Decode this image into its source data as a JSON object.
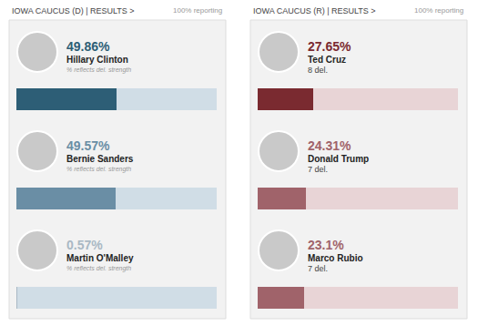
{
  "chart_data": [
    {
      "type": "bar",
      "orientation": "horizontal",
      "title": "IOWA CAUCUS (D) | RESULTS >",
      "subtitle": "100% reporting",
      "categories": [
        "Hillary Clinton",
        "Bernie Sanders",
        "Martin O'Malley"
      ],
      "values": [
        49.86,
        49.57,
        0.57
      ],
      "value_labels": [
        "49.86%",
        "49.57%",
        "0.57%"
      ],
      "notes": [
        "% reflects del. strength",
        "% reflects del. strength",
        "% reflects del. strength"
      ],
      "colors": [
        "#2d5e76",
        "#6a8ea5",
        "#a9b8c4"
      ],
      "xlim": [
        0,
        100
      ],
      "tick_labels": false,
      "data_labels": true
    },
    {
      "type": "bar",
      "orientation": "horizontal",
      "title": "IOWA CAUCUS (R) | RESULTS >",
      "subtitle": "100% reporting",
      "categories": [
        "Ted Cruz",
        "Donald Trump",
        "Marco Rubio"
      ],
      "values": [
        27.65,
        24.31,
        23.1
      ],
      "value_labels": [
        "27.65%",
        "24.31%",
        "23.1%"
      ],
      "notes": [
        "8 del.",
        "7 del.",
        "7 del."
      ],
      "colors": [
        "#7a2a30",
        "#a0636a",
        "#a0636a"
      ],
      "xlim": [
        0,
        100
      ],
      "tick_labels": false,
      "data_labels": true
    }
  ]
}
